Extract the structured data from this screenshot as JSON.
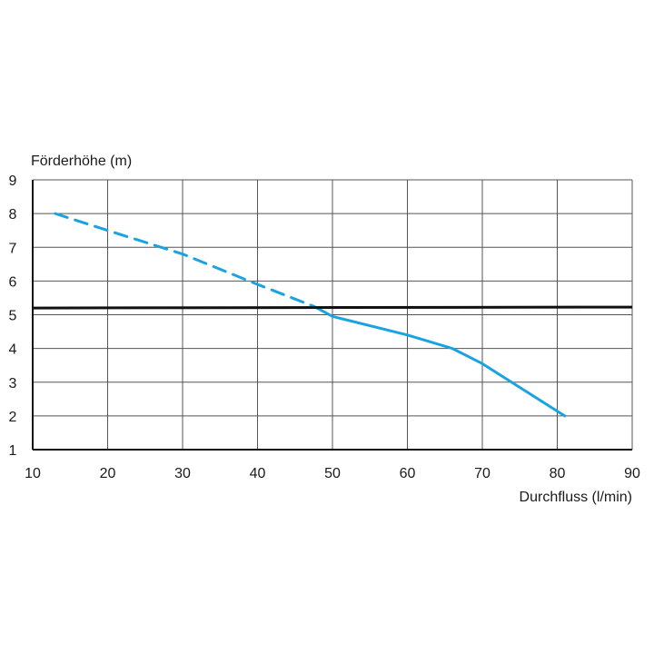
{
  "chart_data": {
    "type": "line",
    "title": "",
    "ylabel": "Förderhöhe (m)",
    "xlabel": "Durchfluss (l/min)",
    "xlim": [
      10,
      90
    ],
    "ylim": [
      1,
      9
    ],
    "x_ticks": [
      10,
      20,
      30,
      40,
      50,
      60,
      70,
      80,
      90
    ],
    "y_ticks": [
      1,
      2,
      3,
      4,
      5,
      6,
      7,
      8,
      9
    ],
    "grid": true,
    "series": [
      {
        "style": "dashed",
        "color": "#1aa3e0",
        "x": [
          13,
          20,
          30,
          40,
          47.5
        ],
        "y": [
          8.0,
          7.5,
          6.8,
          5.9,
          5.25
        ]
      },
      {
        "style": "solid",
        "color": "#1aa3e0",
        "x": [
          47.5,
          50,
          60,
          66,
          70,
          81
        ],
        "y": [
          5.25,
          4.95,
          4.4,
          4.0,
          3.55,
          2.0
        ]
      }
    ],
    "reference_lines": [
      {
        "orientation": "horizontal",
        "y": 5.2,
        "color": "#111111"
      }
    ]
  }
}
